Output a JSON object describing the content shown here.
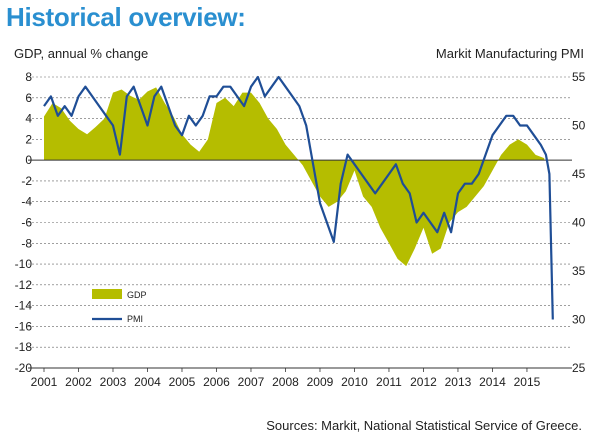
{
  "page": {
    "title": "Historical overview:",
    "source": "Sources: Markit, National Statistical Service of Greece."
  },
  "chart_data": {
    "type": "area",
    "title": "Historical overview:",
    "ylabel": "GDP, annual % change",
    "y2label": "Markit Manufacturing PMI",
    "ylim": [
      -20,
      8
    ],
    "y2lim": [
      25,
      55
    ],
    "yticks": [
      8,
      6,
      4,
      2,
      0,
      -2,
      -4,
      -6,
      -8,
      -10,
      -12,
      -14,
      -16,
      -18,
      -20
    ],
    "y2ticks": [
      55,
      50,
      45,
      40,
      35,
      30,
      25
    ],
    "xlim": [
      2001,
      2015.9
    ],
    "xticks": [
      "2001",
      "2002",
      "2003",
      "2004",
      "2005",
      "2006",
      "2007",
      "2008",
      "2009",
      "2010",
      "2011",
      "2012",
      "2013",
      "2014",
      "2015"
    ],
    "grid": true,
    "legend_position": "bottom-left",
    "colors": {
      "gdp": "#b5bd00",
      "pmi": "#1f4e96"
    },
    "series": [
      {
        "name": "GDP",
        "kind": "area",
        "axis": "left",
        "x": [
          2001.0,
          2001.25,
          2001.5,
          2001.75,
          2002.0,
          2002.25,
          2002.5,
          2002.75,
          2003.0,
          2003.25,
          2003.5,
          2003.75,
          2004.0,
          2004.25,
          2004.5,
          2004.75,
          2005.0,
          2005.25,
          2005.5,
          2005.75,
          2006.0,
          2006.25,
          2006.5,
          2006.75,
          2007.0,
          2007.25,
          2007.5,
          2007.75,
          2008.0,
          2008.25,
          2008.5,
          2008.75,
          2009.0,
          2009.25,
          2009.5,
          2009.75,
          2010.0,
          2010.25,
          2010.5,
          2010.75,
          2011.0,
          2011.25,
          2011.5,
          2011.75,
          2012.0,
          2012.25,
          2012.5,
          2012.75,
          2013.0,
          2013.25,
          2013.5,
          2013.75,
          2014.0,
          2014.25,
          2014.5,
          2014.75,
          2015.0,
          2015.25,
          2015.5
        ],
        "values": [
          4.2,
          5.5,
          5.0,
          3.8,
          3.0,
          2.5,
          3.2,
          4.0,
          6.5,
          6.8,
          6.2,
          5.8,
          6.6,
          7.0,
          5.5,
          4.2,
          2.5,
          1.5,
          0.8,
          2.0,
          5.5,
          6.0,
          5.2,
          6.5,
          6.5,
          5.5,
          4.0,
          3.0,
          1.5,
          0.5,
          -0.5,
          -2.0,
          -3.5,
          -4.5,
          -4.0,
          -3.0,
          -1.0,
          -3.5,
          -4.5,
          -6.5,
          -8.0,
          -9.5,
          -10.2,
          -8.5,
          -6.5,
          -9.0,
          -8.5,
          -6.0,
          -5.0,
          -4.5,
          -3.5,
          -2.5,
          -1.0,
          0.5,
          1.5,
          2.0,
          1.5,
          0.5,
          0.2
        ]
      },
      {
        "name": "PMI",
        "kind": "line",
        "axis": "right",
        "x": [
          2001.0,
          2001.2,
          2001.4,
          2001.6,
          2001.8,
          2002.0,
          2002.2,
          2002.4,
          2002.6,
          2002.8,
          2003.0,
          2003.2,
          2003.4,
          2003.6,
          2003.8,
          2004.0,
          2004.2,
          2004.4,
          2004.6,
          2004.8,
          2005.0,
          2005.2,
          2005.4,
          2005.6,
          2005.8,
          2006.0,
          2006.2,
          2006.4,
          2006.6,
          2006.8,
          2007.0,
          2007.2,
          2007.4,
          2007.6,
          2007.8,
          2008.0,
          2008.2,
          2008.4,
          2008.6,
          2008.8,
          2009.0,
          2009.2,
          2009.4,
          2009.6,
          2009.8,
          2010.0,
          2010.2,
          2010.4,
          2010.6,
          2010.8,
          2011.0,
          2011.2,
          2011.4,
          2011.6,
          2011.8,
          2012.0,
          2012.2,
          2012.4,
          2012.6,
          2012.8,
          2013.0,
          2013.2,
          2013.4,
          2013.6,
          2013.8,
          2014.0,
          2014.2,
          2014.4,
          2014.6,
          2014.8,
          2015.0,
          2015.2,
          2015.4,
          2015.55,
          2015.65,
          2015.75
        ],
        "values": [
          52,
          53,
          51,
          52,
          51,
          53,
          54,
          53,
          52,
          51,
          50,
          47,
          53,
          54,
          52,
          50,
          53,
          54,
          52,
          50,
          49,
          51,
          50,
          51,
          53,
          53,
          54,
          54,
          53,
          52,
          54,
          55,
          53,
          54,
          55,
          54,
          53,
          52,
          50,
          46,
          42,
          40,
          38,
          44,
          47,
          46,
          45,
          44,
          43,
          44,
          45,
          46,
          44,
          43,
          40,
          41,
          40,
          39,
          41,
          39,
          43,
          44,
          44,
          45,
          47,
          49,
          50,
          51,
          51,
          50,
          50,
          49,
          48,
          47,
          45,
          30
        ]
      }
    ]
  }
}
